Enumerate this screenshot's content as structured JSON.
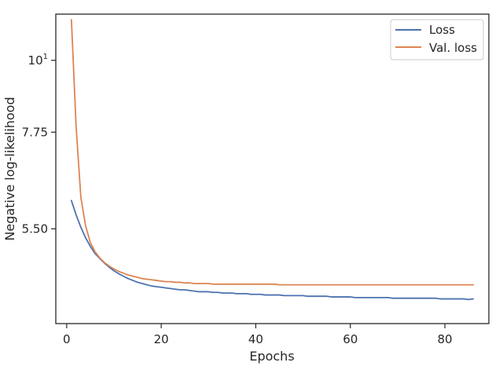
{
  "chart_data": {
    "type": "line",
    "title": "",
    "xlabel": "Epochs",
    "ylabel": "Negative log-likelihood",
    "yscale": "log",
    "xlim": [
      -2.3,
      89.3
    ],
    "ylim": [
      3.93,
      11.78
    ],
    "xticks": [
      0,
      20,
      40,
      60,
      80
    ],
    "xtick_labels": [
      "0",
      "20",
      "40",
      "60",
      "80"
    ],
    "yticks": [
      5.5,
      7.75,
      10
    ],
    "ytick_labels": [
      "5.50",
      "7.75",
      "10¹"
    ],
    "grid": false,
    "legend_position": "top-right",
    "x": [
      1,
      2,
      3,
      4,
      5,
      6,
      7,
      8,
      9,
      10,
      11,
      12,
      13,
      14,
      15,
      16,
      17,
      18,
      19,
      20,
      21,
      22,
      23,
      24,
      25,
      26,
      27,
      28,
      29,
      30,
      31,
      32,
      33,
      34,
      35,
      36,
      37,
      38,
      39,
      40,
      41,
      42,
      43,
      44,
      45,
      46,
      47,
      48,
      49,
      50,
      51,
      52,
      53,
      54,
      55,
      56,
      57,
      58,
      59,
      60,
      61,
      62,
      63,
      64,
      65,
      66,
      67,
      68,
      69,
      70,
      71,
      72,
      73,
      74,
      75,
      76,
      77,
      78,
      79,
      80,
      81,
      82,
      83,
      84,
      85,
      86
    ],
    "series": [
      {
        "name": "Loss",
        "color": "#4c72b0",
        "values": [
          6.08,
          5.78,
          5.53,
          5.33,
          5.17,
          5.04,
          4.95,
          4.87,
          4.8,
          4.74,
          4.69,
          4.65,
          4.61,
          4.58,
          4.55,
          4.53,
          4.51,
          4.49,
          4.48,
          4.47,
          4.46,
          4.45,
          4.44,
          4.43,
          4.43,
          4.42,
          4.41,
          4.4,
          4.4,
          4.4,
          4.39,
          4.39,
          4.38,
          4.38,
          4.38,
          4.37,
          4.37,
          4.37,
          4.36,
          4.36,
          4.36,
          4.35,
          4.35,
          4.35,
          4.35,
          4.34,
          4.34,
          4.34,
          4.34,
          4.34,
          4.33,
          4.33,
          4.33,
          4.33,
          4.33,
          4.32,
          4.32,
          4.32,
          4.32,
          4.32,
          4.31,
          4.31,
          4.31,
          4.31,
          4.31,
          4.31,
          4.31,
          4.31,
          4.3,
          4.3,
          4.3,
          4.3,
          4.3,
          4.3,
          4.3,
          4.3,
          4.3,
          4.3,
          4.29,
          4.29,
          4.29,
          4.29,
          4.29,
          4.29,
          4.28,
          4.29
        ]
      },
      {
        "name": "Val. loss",
        "color": "#dd8452",
        "values": [
          11.55,
          7.9,
          6.15,
          5.56,
          5.24,
          5.07,
          4.96,
          4.88,
          4.82,
          4.77,
          4.73,
          4.7,
          4.67,
          4.65,
          4.63,
          4.61,
          4.6,
          4.59,
          4.58,
          4.57,
          4.56,
          4.56,
          4.55,
          4.55,
          4.54,
          4.54,
          4.53,
          4.53,
          4.53,
          4.53,
          4.52,
          4.52,
          4.52,
          4.52,
          4.52,
          4.52,
          4.52,
          4.52,
          4.52,
          4.52,
          4.52,
          4.52,
          4.52,
          4.52,
          4.51,
          4.51,
          4.51,
          4.51,
          4.51,
          4.51,
          4.51,
          4.51,
          4.51,
          4.51,
          4.51,
          4.51,
          4.51,
          4.51,
          4.51,
          4.51,
          4.51,
          4.51,
          4.51,
          4.51,
          4.51,
          4.51,
          4.51,
          4.51,
          4.51,
          4.51,
          4.51,
          4.51,
          4.51,
          4.51,
          4.51,
          4.51,
          4.51,
          4.51,
          4.51,
          4.51,
          4.51,
          4.51,
          4.51,
          4.51,
          4.51,
          4.51
        ]
      }
    ]
  }
}
